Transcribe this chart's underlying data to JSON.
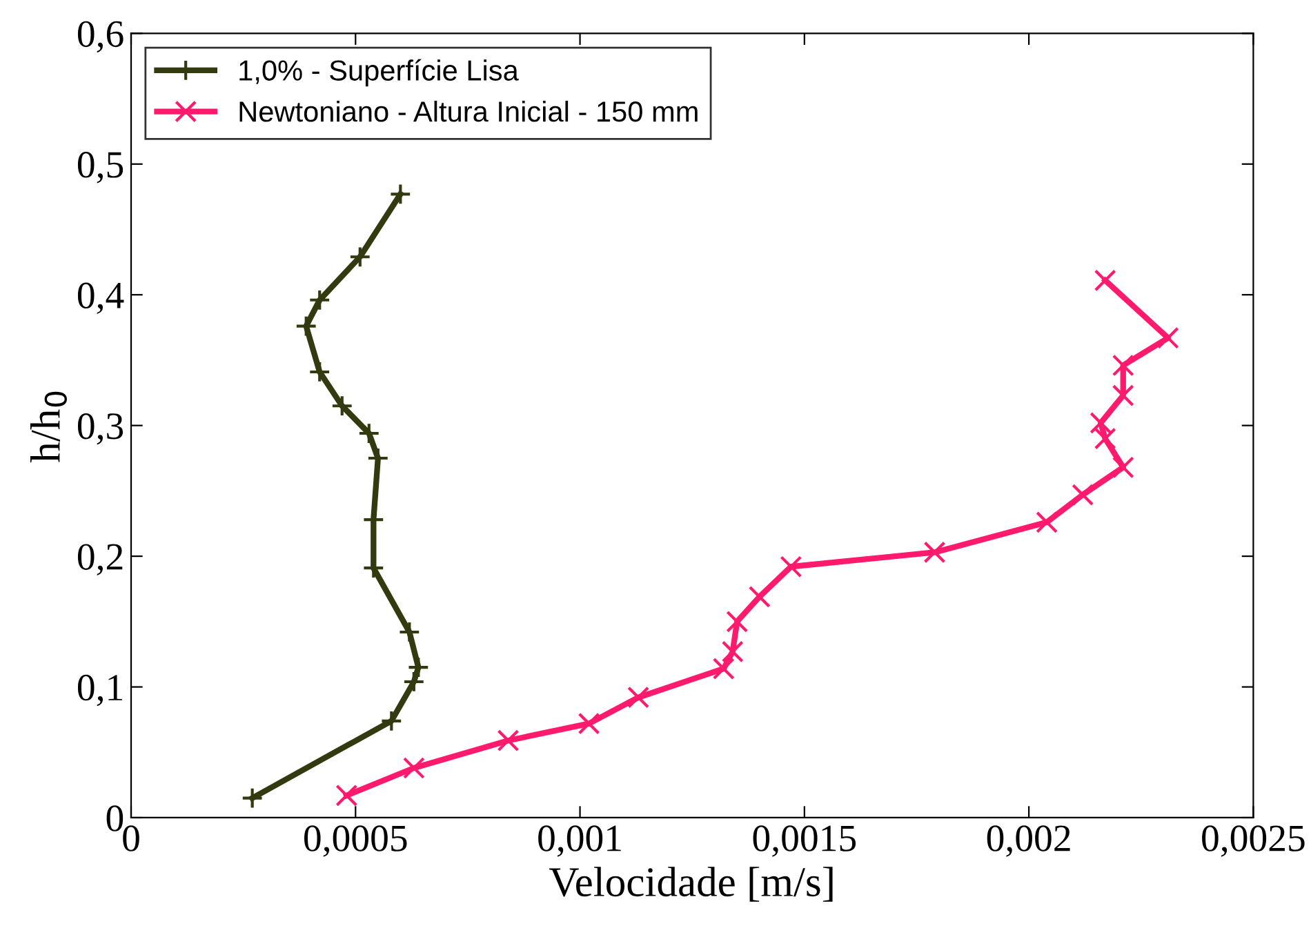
{
  "chart_data": {
    "type": "line",
    "xlabel": "Velocidade [m/s]",
    "ylabel": "h/h$_{0}$",
    "xlim": [
      0,
      0.0025
    ],
    "ylim": [
      0,
      0.6
    ],
    "xticks": [
      0,
      {
        "value": 0.0005,
        "label": "0,0005"
      },
      {
        "value": 0.001,
        "label": "0,001"
      },
      {
        "value": 0.0015,
        "label": "0,0015"
      },
      {
        "value": 0.002,
        "label": "0,002"
      },
      {
        "value": 0.0025,
        "label": "0,0025"
      }
    ],
    "yticks": [
      0,
      {
        "value": 0.1,
        "label": "0,1"
      },
      {
        "value": 0.2,
        "label": "0,2"
      },
      {
        "value": 0.3,
        "label": "0,3"
      },
      {
        "value": 0.4,
        "label": "0,4"
      },
      {
        "value": 0.5,
        "label": "0,5"
      },
      {
        "value": 0.6,
        "label": "0,6"
      }
    ],
    "grid": false,
    "legend": "top left",
    "line_style": "solid",
    "series": [
      {
        "name": "1,0% - Superfície Lisa",
        "color": "#333a0f",
        "marker": "plus",
        "x": [
          0.00027,
          0.00058,
          0.00063,
          0.00064,
          0.00062,
          0.00054,
          0.00054,
          0.00055,
          0.00053,
          0.00047,
          0.00042,
          0.00039,
          0.00042,
          0.00051,
          0.0006
        ],
        "values": [
          0.015,
          0.074,
          0.104,
          0.115,
          0.142,
          0.191,
          0.228,
          0.275,
          0.294,
          0.315,
          0.341,
          0.376,
          0.396,
          0.429,
          0.477
        ]
      },
      {
        "name": "Newtoniano - Altura Inicial - 150 mm",
        "color": "#ff1a6e",
        "marker": "cross",
        "x": [
          0.00048,
          0.00063,
          0.00084,
          0.00102,
          0.00113,
          0.00132,
          0.00134,
          0.00135,
          0.0014,
          0.00147,
          0.00179,
          0.00204,
          0.00212,
          0.00221,
          0.00217,
          0.00216,
          0.00221,
          0.00221,
          0.00231,
          0.00217
        ],
        "values": [
          0.017,
          0.038,
          0.059,
          0.072,
          0.092,
          0.114,
          0.127,
          0.15,
          0.169,
          0.192,
          0.203,
          0.226,
          0.247,
          0.268,
          0.29,
          0.302,
          0.323,
          0.346,
          0.367,
          0.411
        ]
      }
    ]
  }
}
